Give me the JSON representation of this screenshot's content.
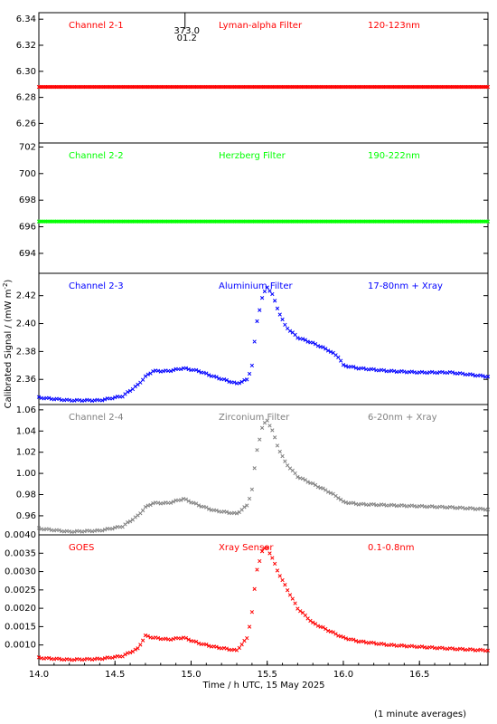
{
  "figure": {
    "date_label": "Time / h UTC, 15 May 2025",
    "ylabel_main": "Calibrated Signal / (mW m",
    "ylabel_sup": "-2",
    "ylabel_end": ")",
    "footer": "(1 minute averages)",
    "marker": {
      "x": 14.96,
      "label_top": "373.0",
      "label_bottom": "01.2"
    }
  },
  "chart_data": [
    {
      "type": "scatter",
      "panel": "channel-2-1",
      "channel": "Channel 2-1",
      "filter": "Lyman-alpha Filter",
      "band": "120-123nm",
      "color": "#ff0000",
      "xlim": [
        14.0,
        16.95
      ],
      "ylim": [
        6.245,
        6.345
      ],
      "yticks": [
        6.26,
        6.28,
        6.3,
        6.32,
        6.34
      ],
      "ytick_labels": [
        "6.26",
        "6.28",
        "6.30",
        "6.32",
        "6.34"
      ],
      "x": [
        14.0,
        16.95
      ],
      "y": [
        6.288,
        6.288
      ],
      "samples": "constant"
    },
    {
      "type": "scatter",
      "panel": "channel-2-2",
      "channel": "Channel 2-2",
      "filter": "Herzberg Filter",
      "band": "190-222nm",
      "color": "#00ff00",
      "xlim": [
        14.0,
        16.95
      ],
      "ylim": [
        692.5,
        702.3
      ],
      "yticks": [
        694,
        696,
        698,
        700,
        702
      ],
      "ytick_labels": [
        "694",
        "696",
        "698",
        "700",
        "702"
      ],
      "x": [
        14.0,
        16.95
      ],
      "y": [
        696.4,
        696.4
      ],
      "samples": "constant"
    },
    {
      "type": "scatter",
      "panel": "channel-2-3",
      "channel": "Channel 2-3",
      "filter": "Aluminium Filter",
      "band": "17-80nm + Xray",
      "color": "#0000ff",
      "xlim": [
        14.0,
        16.95
      ],
      "ylim": [
        2.342,
        2.436
      ],
      "yticks": [
        2.36,
        2.38,
        2.4,
        2.42
      ],
      "ytick_labels": [
        "2.36",
        "2.38",
        "2.40",
        "2.42"
      ],
      "x": [
        14.0,
        14.2,
        14.4,
        14.55,
        14.65,
        14.7,
        14.75,
        14.85,
        14.95,
        15.05,
        15.15,
        15.3,
        15.37,
        15.4,
        15.43,
        15.47,
        15.5,
        15.53,
        15.57,
        15.62,
        15.7,
        15.8,
        15.9,
        15.97,
        16.0,
        16.1,
        16.3,
        16.5,
        16.7,
        16.95
      ],
      "y": [
        2.347,
        2.345,
        2.345,
        2.348,
        2.356,
        2.362,
        2.366,
        2.366,
        2.368,
        2.366,
        2.362,
        2.357,
        2.36,
        2.37,
        2.4,
        2.42,
        2.426,
        2.422,
        2.41,
        2.398,
        2.39,
        2.386,
        2.381,
        2.376,
        2.37,
        2.368,
        2.366,
        2.365,
        2.365,
        2.362
      ]
    },
    {
      "type": "scatter",
      "panel": "channel-2-4",
      "channel": "Channel 2-4",
      "filter": "Zirconium Filter",
      "band": "6-20nm + Xray",
      "color": "#808080",
      "xlim": [
        14.0,
        16.95
      ],
      "ylim": [
        0.942,
        1.065
      ],
      "yticks": [
        0.96,
        0.98,
        1.0,
        1.02,
        1.04,
        1.06
      ],
      "ytick_labels": [
        "0.96",
        "0.98",
        "1.00",
        "1.02",
        "1.04",
        "1.06"
      ],
      "x": [
        14.0,
        14.2,
        14.4,
        14.55,
        14.65,
        14.7,
        14.75,
        14.85,
        14.95,
        15.05,
        15.15,
        15.3,
        15.37,
        15.4,
        15.43,
        15.47,
        15.5,
        15.53,
        15.57,
        15.62,
        15.7,
        15.8,
        15.9,
        15.97,
        16.0,
        16.1,
        16.3,
        16.5,
        16.7,
        16.95
      ],
      "y": [
        0.948,
        0.945,
        0.946,
        0.95,
        0.96,
        0.968,
        0.972,
        0.972,
        0.976,
        0.97,
        0.965,
        0.962,
        0.97,
        0.985,
        1.02,
        1.045,
        1.05,
        1.042,
        1.025,
        1.01,
        0.997,
        0.99,
        0.983,
        0.977,
        0.973,
        0.971,
        0.97,
        0.969,
        0.968,
        0.966
      ]
    },
    {
      "type": "scatter",
      "panel": "goes",
      "channel": "GOES",
      "filter": "Xray Sensor",
      "band": "0.1-0.8nm",
      "color": "#ff0000",
      "xlim": [
        14.0,
        16.95
      ],
      "ylim": [
        0.00045,
        0.004
      ],
      "yticks": [
        0.001,
        0.0015,
        0.002,
        0.0025,
        0.003,
        0.0035,
        0.004
      ],
      "ytick_labels": [
        "0.0010",
        "0.0015",
        "0.0020",
        "0.0025",
        "0.0030",
        "0.0035",
        "0.0040"
      ],
      "xticks": [
        14.0,
        14.5,
        15.0,
        15.5,
        16.0,
        16.5
      ],
      "xtick_labels": [
        "14.0",
        "14.5",
        "15.0",
        "15.5",
        "16.0",
        "16.5"
      ],
      "x": [
        14.0,
        14.2,
        14.4,
        14.55,
        14.65,
        14.7,
        14.75,
        14.85,
        14.95,
        15.05,
        15.15,
        15.3,
        15.37,
        15.4,
        15.43,
        15.47,
        15.5,
        15.53,
        15.57,
        15.62,
        15.7,
        15.8,
        15.9,
        16.0,
        16.1,
        16.3,
        16.5,
        16.7,
        16.95
      ],
      "y": [
        0.00065,
        0.0006,
        0.00062,
        0.0007,
        0.0009,
        0.00125,
        0.0012,
        0.00115,
        0.0012,
        0.00105,
        0.00095,
        0.00085,
        0.0012,
        0.0019,
        0.003,
        0.0036,
        0.00365,
        0.0034,
        0.003,
        0.0026,
        0.002,
        0.0016,
        0.0014,
        0.0012,
        0.0011,
        0.001,
        0.00095,
        0.0009,
        0.00085
      ]
    }
  ]
}
